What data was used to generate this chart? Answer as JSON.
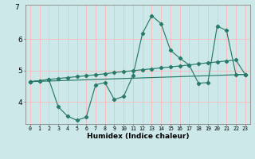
{
  "xlabel": "Humidex (Indice chaleur)",
  "bg_color": "#cce8e8",
  "grid_color": "#f5c0c0",
  "line_color": "#2a7a6a",
  "xlim": [
    -0.5,
    23.5
  ],
  "ylim": [
    3.3,
    7.1
  ],
  "x_ticks": [
    0,
    1,
    2,
    3,
    4,
    5,
    6,
    7,
    8,
    9,
    10,
    11,
    12,
    13,
    14,
    15,
    16,
    17,
    18,
    19,
    20,
    21,
    22,
    23
  ],
  "y_ticks": [
    4,
    5,
    6
  ],
  "line1_x": [
    0,
    1,
    2,
    3,
    4,
    5,
    6,
    7,
    8,
    9,
    10,
    11,
    12,
    13,
    14,
    15,
    16,
    17,
    18,
    19,
    20,
    21,
    22,
    23
  ],
  "line1_y": [
    4.65,
    4.68,
    4.72,
    3.85,
    3.55,
    3.42,
    3.52,
    4.55,
    4.62,
    4.08,
    4.18,
    4.85,
    6.18,
    6.75,
    6.5,
    5.65,
    5.4,
    5.18,
    4.6,
    4.62,
    6.42,
    6.28,
    4.88,
    4.88
  ],
  "line2_x": [
    0,
    1,
    2,
    3,
    4,
    5,
    6,
    7,
    8,
    9,
    10,
    11,
    12,
    13,
    14,
    15,
    16,
    17,
    18,
    19,
    20,
    21,
    22,
    23
  ],
  "line2_y": [
    4.65,
    4.68,
    4.72,
    4.75,
    4.78,
    4.81,
    4.84,
    4.87,
    4.9,
    4.94,
    4.97,
    5.0,
    5.03,
    5.06,
    5.09,
    5.12,
    5.15,
    5.18,
    5.22,
    5.25,
    5.28,
    5.31,
    5.34,
    4.88
  ],
  "line3_x": [
    0,
    23
  ],
  "line3_y": [
    4.65,
    4.88
  ]
}
